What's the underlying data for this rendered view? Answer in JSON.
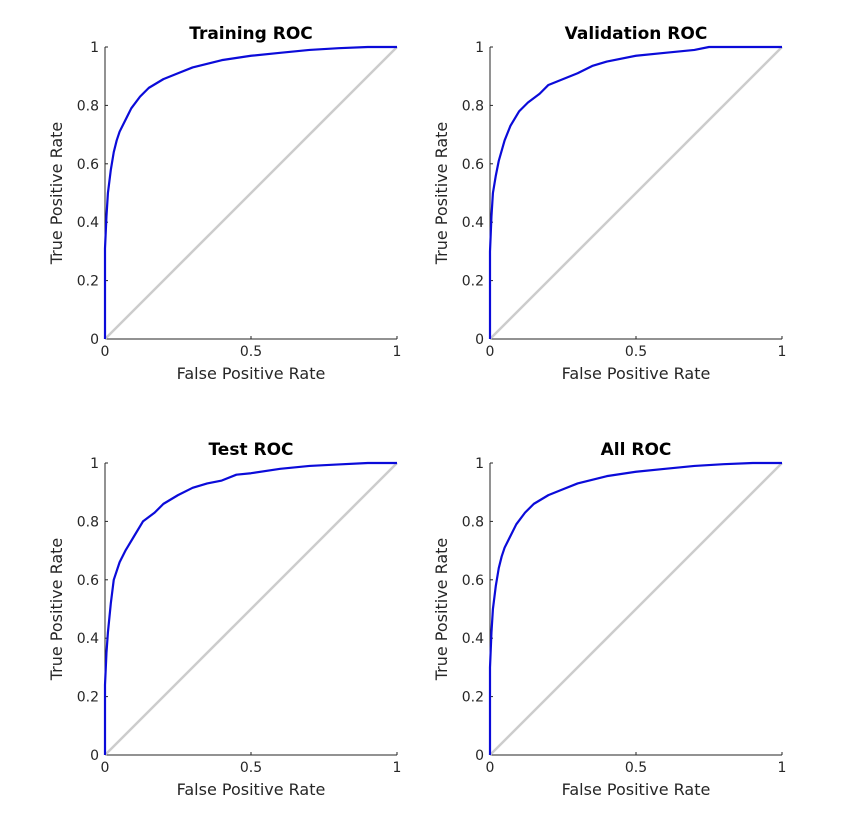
{
  "colors": {
    "roc_curve": "#0b0bd9",
    "diagonal": "#cccccc",
    "axis": "#262626",
    "background": "#ffffff"
  },
  "chart_data": [
    {
      "type": "line",
      "title": "Training ROC",
      "xlabel": "False Positive Rate",
      "ylabel": "True Positive Rate",
      "xlim": [
        0,
        1
      ],
      "ylim": [
        0,
        1
      ],
      "xticks": [
        0,
        0.5,
        1
      ],
      "xtick_labels": [
        "0",
        "0.5",
        "1"
      ],
      "yticks": [
        0,
        0.2,
        0.4,
        0.6,
        0.8,
        1
      ],
      "ytick_labels": [
        "0",
        "0.2",
        "0.4",
        "0.6",
        "0.8",
        "1"
      ],
      "grid": false,
      "series": [
        {
          "x": [
            0,
            0,
            0.005,
            0.01,
            0.02,
            0.03,
            0.04,
            0.05,
            0.07,
            0.09,
            0.12,
            0.15,
            0.2,
            0.25,
            0.3,
            0.4,
            0.5,
            0.6,
            0.7,
            0.8,
            0.9,
            1
          ],
          "y": [
            0,
            0.31,
            0.42,
            0.5,
            0.58,
            0.64,
            0.68,
            0.71,
            0.75,
            0.79,
            0.83,
            0.86,
            0.89,
            0.91,
            0.93,
            0.955,
            0.97,
            0.98,
            0.99,
            0.996,
            1,
            1
          ]
        },
        {
          "x": [
            0,
            1
          ],
          "y": [
            0,
            1
          ]
        }
      ]
    },
    {
      "type": "line",
      "title": "Validation ROC",
      "xlabel": "False Positive Rate",
      "ylabel": "True Positive Rate",
      "xlim": [
        0,
        1
      ],
      "ylim": [
        0,
        1
      ],
      "xticks": [
        0,
        0.5,
        1
      ],
      "xtick_labels": [
        "0",
        "0.5",
        "1"
      ],
      "yticks": [
        0,
        0.2,
        0.4,
        0.6,
        0.8,
        1
      ],
      "ytick_labels": [
        "0",
        "0.2",
        "0.4",
        "0.6",
        "0.8",
        "1"
      ],
      "grid": false,
      "series": [
        {
          "x": [
            0,
            0,
            0.005,
            0.01,
            0.02,
            0.03,
            0.05,
            0.07,
            0.1,
            0.13,
            0.17,
            0.2,
            0.25,
            0.3,
            0.35,
            0.4,
            0.5,
            0.6,
            0.7,
            0.75,
            0.8,
            1
          ],
          "y": [
            0,
            0.3,
            0.42,
            0.5,
            0.56,
            0.61,
            0.68,
            0.73,
            0.78,
            0.81,
            0.84,
            0.87,
            0.89,
            0.91,
            0.935,
            0.95,
            0.97,
            0.98,
            0.99,
            1,
            1,
            1
          ]
        },
        {
          "x": [
            0,
            1
          ],
          "y": [
            0,
            1
          ]
        }
      ]
    },
    {
      "type": "line",
      "title": "Test ROC",
      "xlabel": "False Positive Rate",
      "ylabel": "True Positive Rate",
      "xlim": [
        0,
        1
      ],
      "ylim": [
        0,
        1
      ],
      "xticks": [
        0,
        0.5,
        1
      ],
      "xtick_labels": [
        "0",
        "0.5",
        "1"
      ],
      "yticks": [
        0,
        0.2,
        0.4,
        0.6,
        0.8,
        1
      ],
      "ytick_labels": [
        "0",
        "0.2",
        "0.4",
        "0.6",
        "0.8",
        "1"
      ],
      "grid": false,
      "series": [
        {
          "x": [
            0,
            0,
            0.005,
            0.01,
            0.02,
            0.03,
            0.05,
            0.07,
            0.1,
            0.13,
            0.17,
            0.2,
            0.25,
            0.3,
            0.35,
            0.4,
            0.45,
            0.5,
            0.6,
            0.7,
            0.8,
            0.9,
            1
          ],
          "y": [
            0,
            0.24,
            0.35,
            0.42,
            0.52,
            0.6,
            0.66,
            0.7,
            0.75,
            0.8,
            0.83,
            0.86,
            0.89,
            0.915,
            0.93,
            0.94,
            0.96,
            0.965,
            0.98,
            0.99,
            0.995,
            1,
            1
          ]
        },
        {
          "x": [
            0,
            1
          ],
          "y": [
            0,
            1
          ]
        }
      ]
    },
    {
      "type": "line",
      "title": "All ROC",
      "xlabel": "False Positive Rate",
      "ylabel": "True Positive Rate",
      "xlim": [
        0,
        1
      ],
      "ylim": [
        0,
        1
      ],
      "xticks": [
        0,
        0.5,
        1
      ],
      "xtick_labels": [
        "0",
        "0.5",
        "1"
      ],
      "yticks": [
        0,
        0.2,
        0.4,
        0.6,
        0.8,
        1
      ],
      "ytick_labels": [
        "0",
        "0.2",
        "0.4",
        "0.6",
        "0.8",
        "1"
      ],
      "grid": false,
      "series": [
        {
          "x": [
            0,
            0,
            0.005,
            0.01,
            0.02,
            0.03,
            0.04,
            0.05,
            0.07,
            0.09,
            0.12,
            0.15,
            0.2,
            0.25,
            0.3,
            0.4,
            0.5,
            0.6,
            0.7,
            0.8,
            0.9,
            1
          ],
          "y": [
            0,
            0.3,
            0.42,
            0.5,
            0.58,
            0.64,
            0.68,
            0.71,
            0.75,
            0.79,
            0.83,
            0.86,
            0.89,
            0.91,
            0.93,
            0.955,
            0.97,
            0.98,
            0.99,
            0.996,
            1,
            1
          ]
        },
        {
          "x": [
            0,
            1
          ],
          "y": [
            0,
            1
          ]
        }
      ]
    }
  ]
}
